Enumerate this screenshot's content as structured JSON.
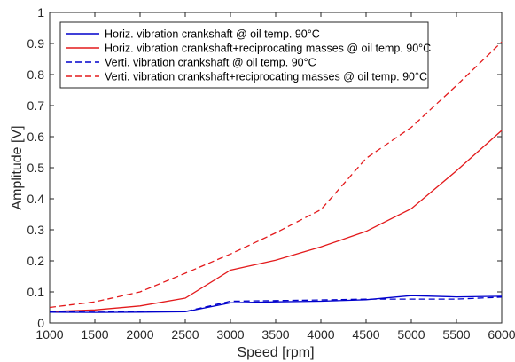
{
  "chart_data": {
    "type": "line",
    "title": "",
    "xlabel": "Speed [rpm]",
    "ylabel": "Amplitude [V]",
    "xlim": [
      1000,
      6000
    ],
    "ylim": [
      0,
      1
    ],
    "xticks": [
      "1000",
      "1500",
      "2000",
      "2500",
      "3000",
      "3500",
      "4000",
      "4500",
      "5000",
      "5500",
      "6000"
    ],
    "yticks": [
      "0",
      "0.1",
      "0.2",
      "0.3",
      "0.4",
      "0.5",
      "0.6",
      "0.7",
      "0.8",
      "0.9",
      "1"
    ],
    "grid": false,
    "legend_position": "top-left",
    "x": [
      1000,
      1500,
      2000,
      2500,
      3000,
      3500,
      4000,
      4500,
      5000,
      5500,
      6000
    ],
    "series": [
      {
        "name": "Horiz. vibration crankshaft @ oil temp. 90°C",
        "color": "#0000cc",
        "style": "solid",
        "values": [
          0.035,
          0.034,
          0.035,
          0.036,
          0.065,
          0.068,
          0.07,
          0.075,
          0.088,
          0.084,
          0.086
        ]
      },
      {
        "name": "Horiz. vibration crankshaft+reciprocating masses @ oil temp. 90°C",
        "color": "#e31a1c",
        "style": "solid",
        "values": [
          0.037,
          0.042,
          0.055,
          0.08,
          0.17,
          0.202,
          0.245,
          0.295,
          0.368,
          0.49,
          0.62
        ]
      },
      {
        "name": "Verti. vibration crankshaft @ oil temp. 90°C",
        "color": "#0000cc",
        "style": "dashed",
        "values": [
          0.036,
          0.035,
          0.036,
          0.037,
          0.07,
          0.072,
          0.074,
          0.077,
          0.077,
          0.077,
          0.083
        ]
      },
      {
        "name": "Verti. vibration crankshaft+reciprocating masses @ oil temp. 90°C",
        "color": "#e31a1c",
        "style": "dashed",
        "values": [
          0.05,
          0.068,
          0.1,
          0.16,
          0.222,
          0.29,
          0.365,
          0.53,
          0.63,
          0.765,
          0.905
        ]
      }
    ]
  }
}
